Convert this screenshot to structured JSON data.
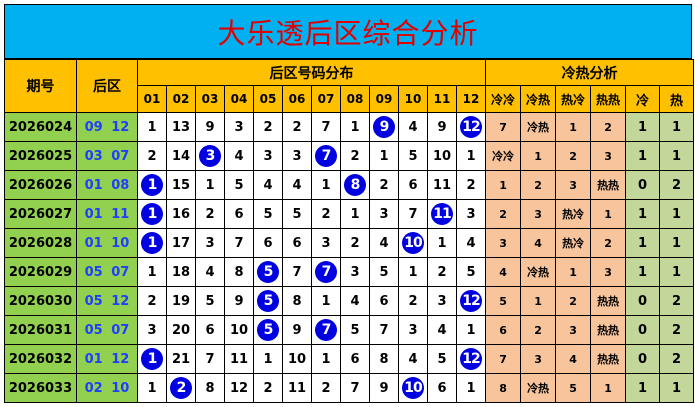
{
  "title": "大乐透后区综合分析",
  "headers": {
    "period": "期号",
    "back": "后区",
    "dist": "后区号码分布",
    "analysis": "冷热分析",
    "numbers": [
      "01",
      "02",
      "03",
      "04",
      "05",
      "06",
      "07",
      "08",
      "09",
      "10",
      "11",
      "12"
    ],
    "analysis_cols": [
      "冷冷",
      "冷热",
      "热冷",
      "热热",
      "冷",
      "热"
    ]
  },
  "colors": {
    "title_bg": "#00b0f0",
    "title_text": "#e00000",
    "header_bg": "#ffc000",
    "period_bg": "#92d050",
    "analysis_bg": "#f8c49c",
    "count_bg": "#c4d79b",
    "ball": "#0000e0"
  },
  "rows": [
    {
      "period": "2026024",
      "back": "09 12",
      "cells": [
        "1",
        "13",
        "9",
        "3",
        "2",
        "2",
        "7",
        "1",
        "9",
        "4",
        "9",
        "12"
      ],
      "hits": [
        9,
        12
      ],
      "analysis": [
        "7",
        "冷热",
        "1",
        "2",
        "1",
        "1"
      ]
    },
    {
      "period": "2026025",
      "back": "03 07",
      "cells": [
        "2",
        "14",
        "3",
        "4",
        "3",
        "3",
        "7",
        "2",
        "1",
        "5",
        "10",
        "1"
      ],
      "hits": [
        3,
        7
      ],
      "analysis": [
        "冷冷",
        "1",
        "2",
        "3",
        "1",
        "1"
      ]
    },
    {
      "period": "2026026",
      "back": "01 08",
      "cells": [
        "1",
        "15",
        "1",
        "5",
        "4",
        "4",
        "1",
        "8",
        "2",
        "6",
        "11",
        "2"
      ],
      "hits": [
        1,
        8
      ],
      "analysis": [
        "1",
        "2",
        "3",
        "热热",
        "0",
        "2"
      ]
    },
    {
      "period": "2026027",
      "back": "01 11",
      "cells": [
        "1",
        "16",
        "2",
        "6",
        "5",
        "5",
        "2",
        "1",
        "3",
        "7",
        "11",
        "3"
      ],
      "hits": [
        1,
        11
      ],
      "analysis": [
        "2",
        "3",
        "热冷",
        "1",
        "1",
        "1"
      ]
    },
    {
      "period": "2026028",
      "back": "01 10",
      "cells": [
        "1",
        "17",
        "3",
        "7",
        "6",
        "6",
        "3",
        "2",
        "4",
        "10",
        "1",
        "4"
      ],
      "hits": [
        1,
        10
      ],
      "analysis": [
        "3",
        "4",
        "热冷",
        "2",
        "1",
        "1"
      ]
    },
    {
      "period": "2026029",
      "back": "05 07",
      "cells": [
        "1",
        "18",
        "4",
        "8",
        "5",
        "7",
        "7",
        "3",
        "5",
        "1",
        "2",
        "5"
      ],
      "hits": [
        5,
        7
      ],
      "analysis": [
        "4",
        "冷热",
        "1",
        "3",
        "1",
        "1"
      ]
    },
    {
      "period": "2026030",
      "back": "05 12",
      "cells": [
        "2",
        "19",
        "5",
        "9",
        "5",
        "8",
        "1",
        "4",
        "6",
        "2",
        "3",
        "12"
      ],
      "hits": [
        5,
        12
      ],
      "analysis": [
        "5",
        "1",
        "2",
        "热热",
        "0",
        "2"
      ]
    },
    {
      "period": "2026031",
      "back": "05 07",
      "cells": [
        "3",
        "20",
        "6",
        "10",
        "5",
        "9",
        "7",
        "5",
        "7",
        "3",
        "4",
        "1"
      ],
      "hits": [
        5,
        7
      ],
      "analysis": [
        "6",
        "2",
        "3",
        "热热",
        "0",
        "2"
      ]
    },
    {
      "period": "2026032",
      "back": "01 12",
      "cells": [
        "1",
        "21",
        "7",
        "11",
        "1",
        "10",
        "1",
        "6",
        "8",
        "4",
        "5",
        "12"
      ],
      "hits": [
        1,
        12
      ],
      "analysis": [
        "7",
        "3",
        "4",
        "热热",
        "0",
        "2"
      ]
    },
    {
      "period": "2026033",
      "back": "02 10",
      "cells": [
        "1",
        "2",
        "8",
        "12",
        "2",
        "11",
        "2",
        "7",
        "9",
        "10",
        "6",
        "1"
      ],
      "hits": [
        2,
        10
      ],
      "analysis": [
        "8",
        "冷热",
        "5",
        "1",
        "1",
        "1"
      ]
    }
  ]
}
